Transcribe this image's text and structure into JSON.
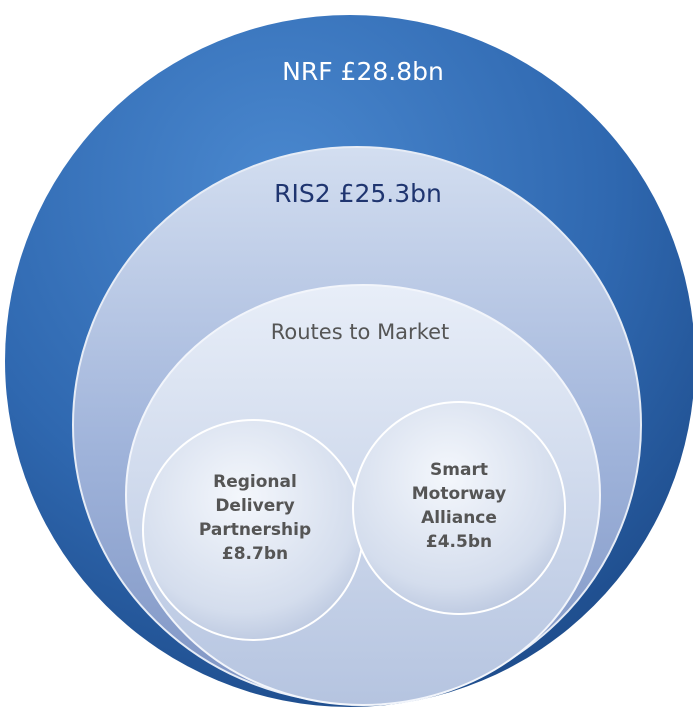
{
  "levels": [
    {
      "label": "NRF £28.8bn"
    },
    {
      "label": "RIS2 £25.3bn"
    },
    {
      "label": "Routes to Market"
    }
  ],
  "nodes": [
    {
      "lines": [
        "Regional",
        "Delivery",
        "Partnership",
        "£8.7bn"
      ]
    },
    {
      "lines": [
        "Smart",
        "Motorway",
        "Alliance",
        "£4.5bn"
      ]
    }
  ]
}
